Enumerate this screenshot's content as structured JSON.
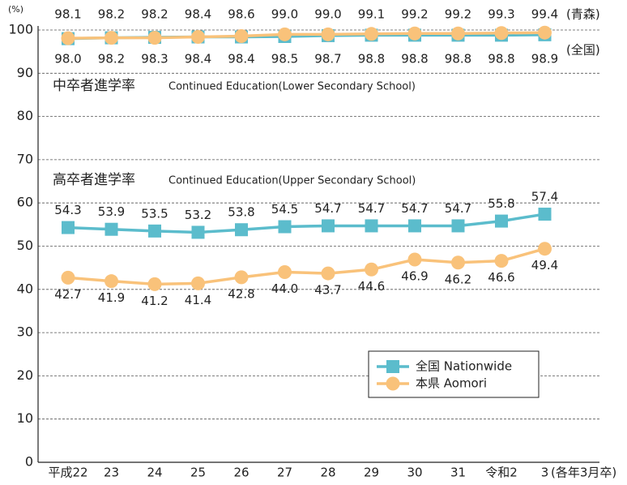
{
  "chart_data": {
    "type": "line",
    "y_label": "(%)",
    "x_note": "(各年3月卒)",
    "categories": [
      "平成22",
      "23",
      "24",
      "25",
      "26",
      "27",
      "28",
      "29",
      "30",
      "31",
      "令和2",
      "3"
    ],
    "ylim": [
      0,
      100
    ],
    "yticks": [
      0,
      10,
      20,
      30,
      40,
      50,
      60,
      70,
      80,
      90,
      100
    ],
    "grid": true,
    "annotations": [
      "(青森)",
      "(全国)"
    ],
    "groups": [
      {
        "title": "中卒者進学率",
        "title_en": "Continued Education(Lower Secondary School)",
        "series": [
          {
            "name": "全国 Nationwide",
            "color": "#5bbccc",
            "marker": "square",
            "values": [
              98.0,
              98.2,
              98.3,
              98.4,
              98.4,
              98.5,
              98.7,
              98.8,
              98.8,
              98.8,
              98.8,
              98.9
            ],
            "value_labels": [
              "98.0",
              "98.2",
              "98.3",
              "98.4",
              "98.4",
              "98.5",
              "98.7",
              "98.8",
              "98.8",
              "98.8",
              "98.8",
              "98.9"
            ]
          },
          {
            "name": "本県 Aomori",
            "color": "#f9c27a",
            "marker": "circle",
            "values": [
              98.1,
              98.2,
              98.2,
              98.4,
              98.6,
              99.0,
              99.0,
              99.1,
              99.2,
              99.2,
              99.3,
              99.4
            ],
            "value_labels": [
              "98.1",
              "98.2",
              "98.2",
              "98.4",
              "98.6",
              "99.0",
              "99.0",
              "99.1",
              "99.2",
              "99.2",
              "99.3",
              "99.4"
            ]
          }
        ]
      },
      {
        "title": "高卒者進学率",
        "title_en": "Continued Education(Upper Secondary School)",
        "series": [
          {
            "name": "全国 Nationwide",
            "color": "#5bbccc",
            "marker": "square",
            "values": [
              54.3,
              53.9,
              53.5,
              53.2,
              53.8,
              54.5,
              54.7,
              54.7,
              54.7,
              54.7,
              55.8,
              57.4
            ],
            "value_labels": [
              "54.3",
              "53.9",
              "53.5",
              "53.2",
              "53.8",
              "54.5",
              "54.7",
              "54.7",
              "54.7",
              "54.7",
              "55.8",
              "57.4"
            ]
          },
          {
            "name": "本県 Aomori",
            "color": "#f9c27a",
            "marker": "circle",
            "values": [
              42.7,
              41.9,
              41.2,
              41.4,
              42.8,
              44.0,
              43.7,
              44.6,
              46.9,
              46.2,
              46.6,
              49.4
            ],
            "value_labels": [
              "42.7",
              "41.9",
              "41.2",
              "41.4",
              "42.8",
              "44.0",
              "43.7",
              "44.6",
              "46.9",
              "46.2",
              "46.6",
              "49.4"
            ]
          }
        ]
      }
    ]
  }
}
